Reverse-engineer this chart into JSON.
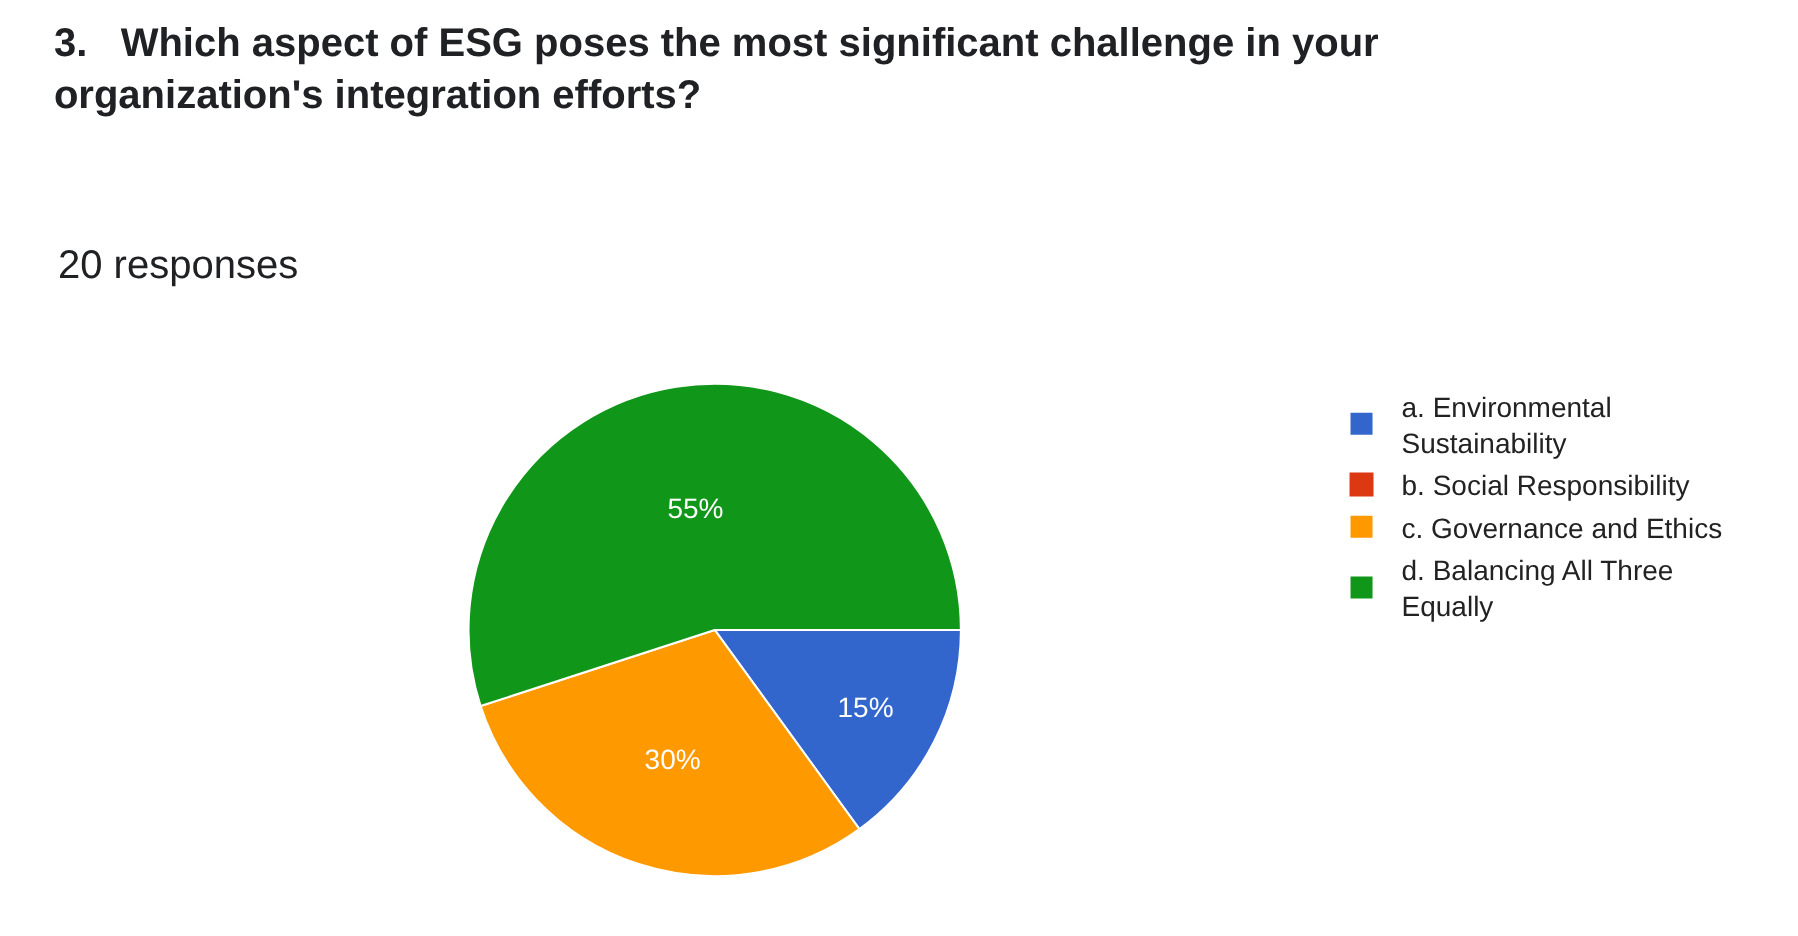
{
  "chart_data": {
    "type": "pie",
    "title": "3.   Which aspect of ESG poses the most significant challenge in your organization's integration efforts?",
    "subtitle": "20 responses",
    "categories": [
      "a. Environmental Sustainability",
      "b. Social Responsibility",
      "c. Governance and Ethics",
      "d. Balancing All Three Equally"
    ],
    "values": [
      15,
      0,
      30,
      55
    ],
    "colors": [
      "#3366cc",
      "#dc3912",
      "#ff9900",
      "#109618"
    ],
    "value_labels": [
      "15%",
      null,
      "30%",
      "55%"
    ],
    "legend": "right"
  }
}
